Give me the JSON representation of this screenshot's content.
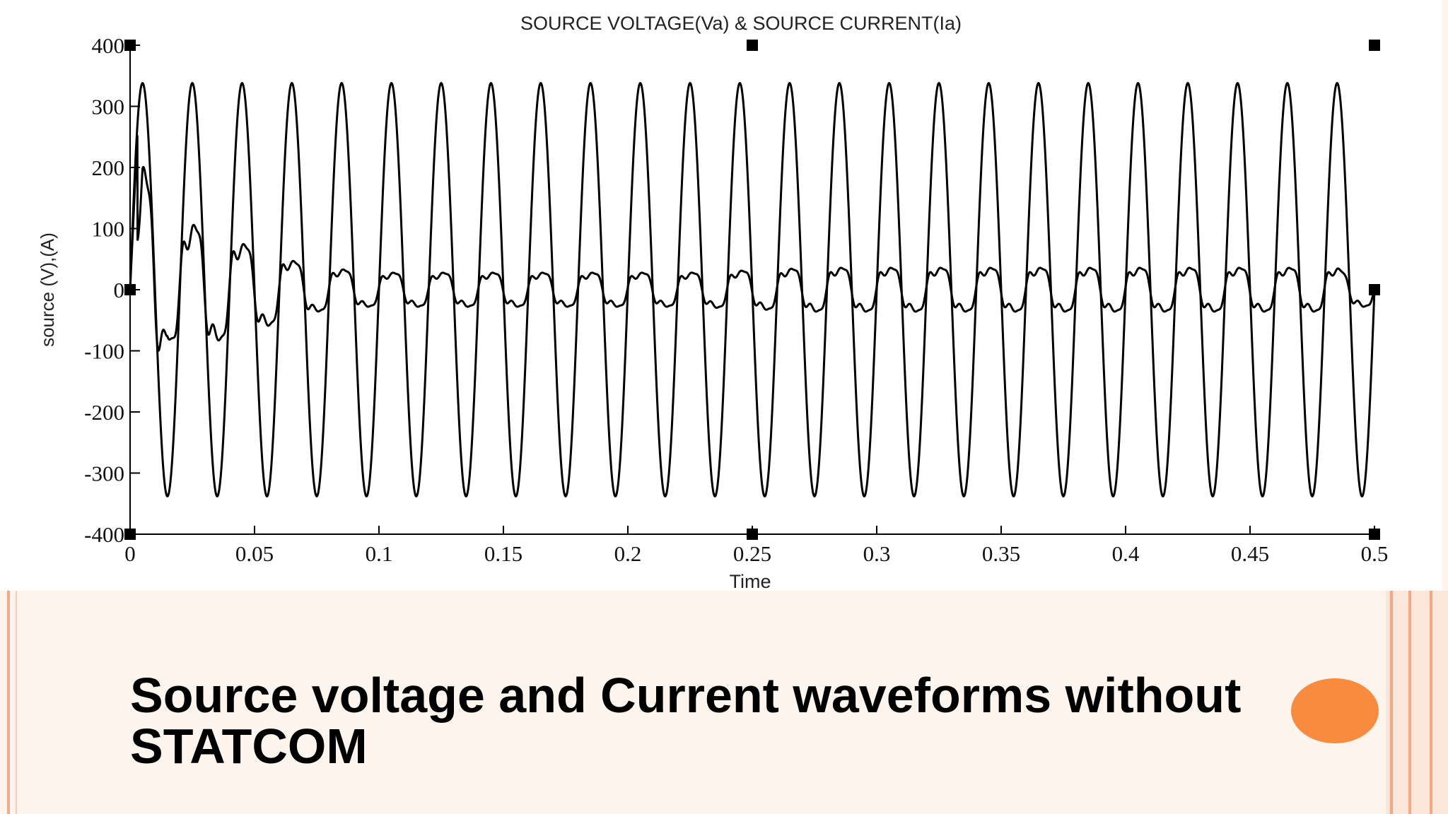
{
  "slide": {
    "caption": "Source voltage and Current waveforms without\nSTATCOM",
    "accent_color": "#f98b3e",
    "frame_color": "#f3a988",
    "background": "#fdf4ee"
  },
  "chart_data": {
    "type": "line",
    "title": "SOURCE VOLTAGE(Va) & SOURCE CURRENT(Ia)",
    "xlabel": "Time",
    "ylabel": "source (V),(A)",
    "xlim": [
      0,
      0.5
    ],
    "ylim": [
      -400,
      400
    ],
    "x_ticks": [
      "0",
      "0.05",
      "0.1",
      "0.15",
      "0.2",
      "0.25",
      "0.3",
      "0.35",
      "0.4",
      "0.45",
      "0.5"
    ],
    "y_ticks": [
      "400",
      "300",
      "200",
      "100",
      "0",
      "-100",
      "-200",
      "-300",
      "-400"
    ],
    "grid": false,
    "line_color": "#000000",
    "series": [
      {
        "frequency_hz": 50,
        "peak": 338,
        "x": [
          0,
          0.005,
          0.01,
          0.015,
          0.02,
          0.025,
          0.03,
          0.035,
          0.04,
          0.045,
          0.05,
          0.495,
          0.5
        ],
        "y": [
          0,
          338,
          0,
          -338,
          0,
          338,
          0,
          -338,
          0,
          338,
          0,
          338,
          0
        ]
      },
      {
        "frequency_hz": 50,
        "x": [
          0,
          0.005,
          0.015,
          0.025,
          0.035,
          0.045,
          0.055,
          0.065,
          0.075,
          0.085,
          0.095,
          0.125,
          0.175,
          0.225,
          0.275,
          0.325,
          0.375,
          0.425,
          0.475,
          0.485,
          0.5
        ],
        "y": [
          0,
          260,
          -100,
          135,
          -105,
          95,
          -75,
          60,
          -45,
          42,
          -35,
          35,
          -30,
          35,
          45,
          45,
          45,
          45,
          45,
          -45,
          0
        ]
      }
    ]
  }
}
